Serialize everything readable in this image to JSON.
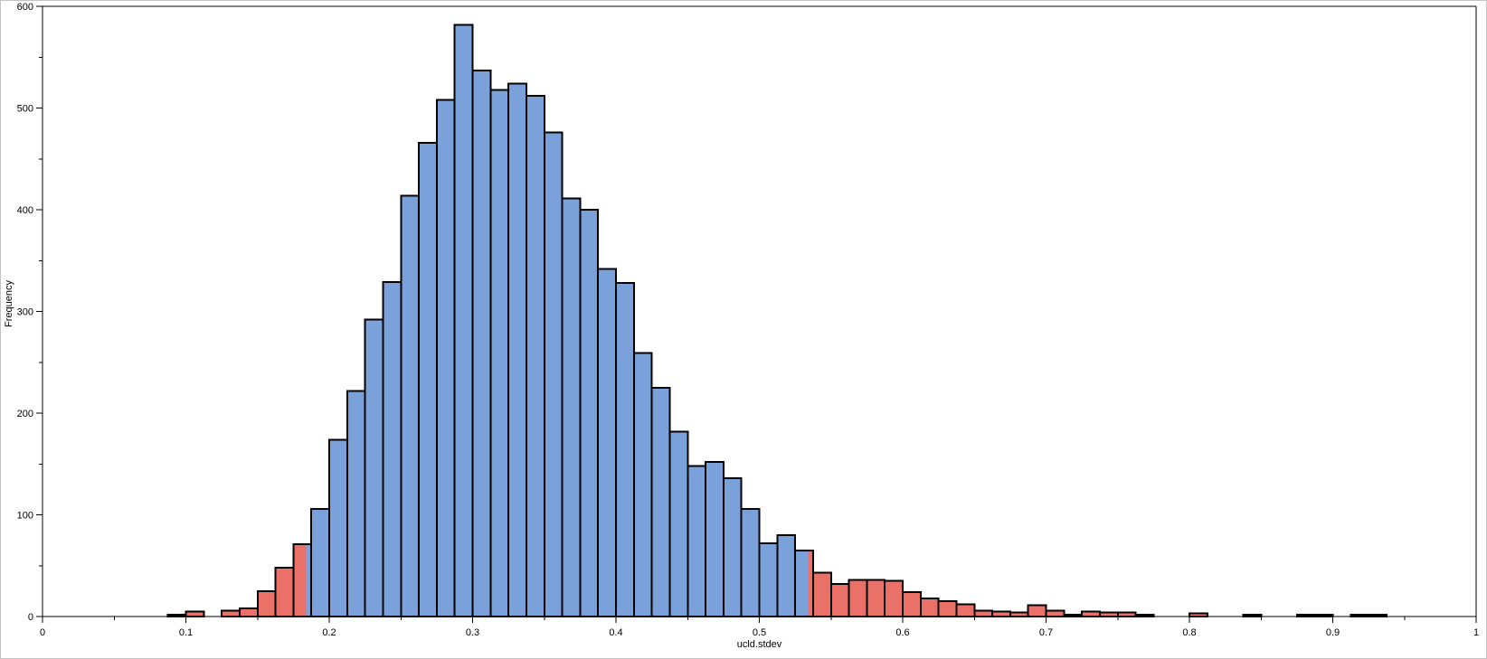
{
  "window": {
    "background": "#ffffff",
    "border_color": "#c4c4c4"
  },
  "chart_data": {
    "type": "bar",
    "subtype": "histogram",
    "title": "",
    "xlabel": "ucld.stdev",
    "ylabel": "Frequency",
    "xlim": [
      0,
      1
    ],
    "ylim": [
      0,
      600
    ],
    "grid": false,
    "legend": "none",
    "x_major_ticks": [
      0,
      0.1,
      0.2,
      0.3,
      0.4,
      0.5,
      0.6,
      0.7,
      0.8,
      0.9,
      1
    ],
    "x_major_tick_labels": [
      "0",
      "0.1",
      "0.2",
      "0.3",
      "0.4",
      "0.5",
      "0.6",
      "0.7",
      "0.8",
      "0.9",
      "1"
    ],
    "x_minor_tick_step": 0.05,
    "y_major_ticks": [
      0,
      100,
      200,
      300,
      400,
      500,
      600
    ],
    "y_major_tick_labels": [
      "0",
      "100",
      "200",
      "300",
      "400",
      "500",
      "600"
    ],
    "y_minor_tick_step": 50,
    "bin_width": 0.0125,
    "hpd_interval": [
      0.184,
      0.534
    ],
    "colors": {
      "in_interval": "#7aa1da",
      "out_interval": "#ea7168",
      "outline": "#000000",
      "axis": "#000000"
    },
    "bins": [
      [
        0.0875,
        2
      ],
      [
        0.1,
        5
      ],
      [
        0.1125,
        0
      ],
      [
        0.125,
        6
      ],
      [
        0.1375,
        8
      ],
      [
        0.15,
        25
      ],
      [
        0.1625,
        48
      ],
      [
        0.175,
        71
      ],
      [
        0.1875,
        106
      ],
      [
        0.2,
        174
      ],
      [
        0.2125,
        222
      ],
      [
        0.225,
        292
      ],
      [
        0.2375,
        329
      ],
      [
        0.25,
        414
      ],
      [
        0.2625,
        466
      ],
      [
        0.275,
        508
      ],
      [
        0.2875,
        582
      ],
      [
        0.3,
        537
      ],
      [
        0.3125,
        518
      ],
      [
        0.325,
        524
      ],
      [
        0.3375,
        512
      ],
      [
        0.35,
        476
      ],
      [
        0.3625,
        411
      ],
      [
        0.375,
        400
      ],
      [
        0.3875,
        342
      ],
      [
        0.4,
        328
      ],
      [
        0.4125,
        259
      ],
      [
        0.425,
        225
      ],
      [
        0.4375,
        182
      ],
      [
        0.45,
        148
      ],
      [
        0.4625,
        152
      ],
      [
        0.475,
        136
      ],
      [
        0.4875,
        106
      ],
      [
        0.5,
        72
      ],
      [
        0.5125,
        80
      ],
      [
        0.525,
        65
      ],
      [
        0.5375,
        43
      ],
      [
        0.55,
        32
      ],
      [
        0.5625,
        36
      ],
      [
        0.575,
        36
      ],
      [
        0.5875,
        35
      ],
      [
        0.6,
        24
      ],
      [
        0.6125,
        18
      ],
      [
        0.625,
        15
      ],
      [
        0.6375,
        12
      ],
      [
        0.65,
        6
      ],
      [
        0.6625,
        5
      ],
      [
        0.675,
        4
      ],
      [
        0.6875,
        11
      ],
      [
        0.7,
        6
      ],
      [
        0.7125,
        2
      ],
      [
        0.725,
        5
      ],
      [
        0.7375,
        4
      ],
      [
        0.75,
        4
      ],
      [
        0.7625,
        2
      ],
      [
        0.775,
        0
      ],
      [
        0.7875,
        0
      ],
      [
        0.8,
        3
      ],
      [
        0.8125,
        0
      ],
      [
        0.825,
        0
      ],
      [
        0.8375,
        2
      ],
      [
        0.85,
        0
      ],
      [
        0.8625,
        0
      ],
      [
        0.875,
        2
      ],
      [
        0.8875,
        2
      ],
      [
        0.9,
        0
      ],
      [
        0.9125,
        2
      ],
      [
        0.925,
        2
      ]
    ]
  }
}
